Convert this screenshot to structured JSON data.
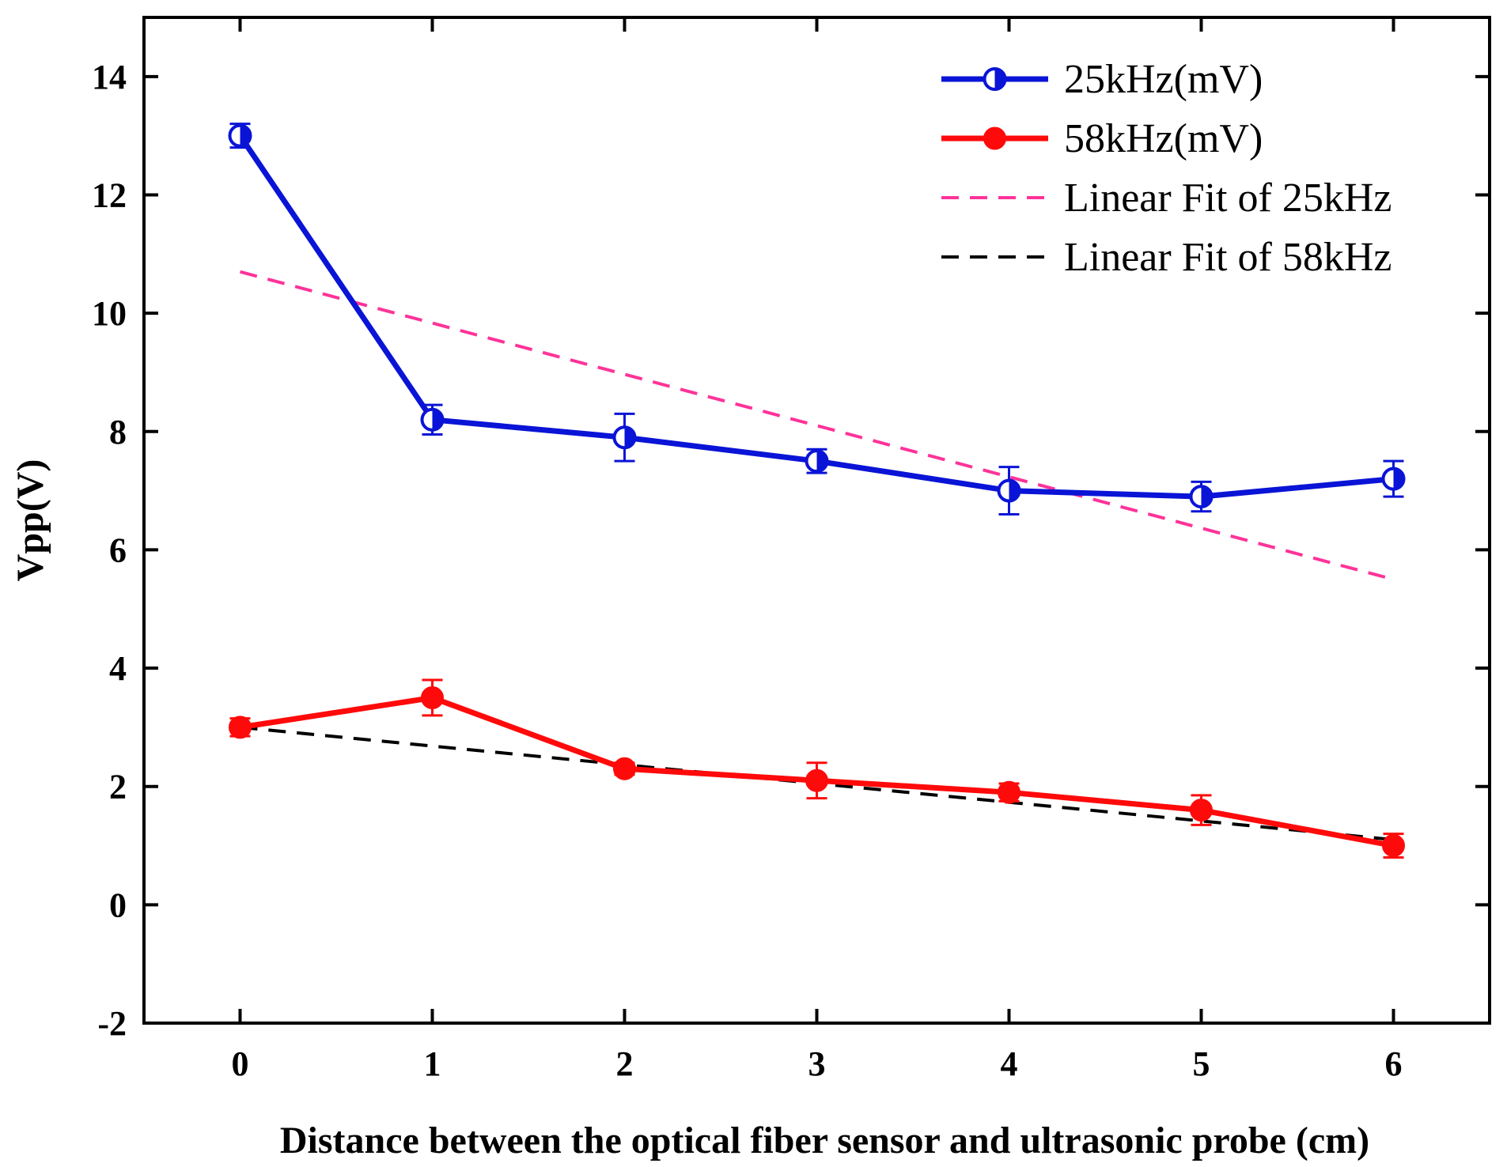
{
  "chart_data": {
    "type": "line",
    "xlabel": "Distance between the optical fiber sensor and ultrasonic probe (cm)",
    "ylabel": "Vpp(V)",
    "xlim": [
      -0.5,
      6.5
    ],
    "ylim": [
      -2,
      15
    ],
    "x_ticks": [
      0,
      1,
      2,
      3,
      4,
      5,
      6
    ],
    "y_ticks": [
      -2,
      0,
      2,
      4,
      6,
      8,
      10,
      12,
      14
    ],
    "x_tick_labels": [
      "0",
      "1",
      "2",
      "3",
      "4",
      "5",
      "6"
    ],
    "y_tick_labels": [
      "-2",
      "0",
      "2",
      "4",
      "6",
      "8",
      "10",
      "12",
      "14"
    ],
    "grid": false,
    "legend_position": "top-right",
    "series": [
      {
        "name": "25kHz(mV)",
        "color": "#0a14d6",
        "marker": "half-filled-circle",
        "x": [
          0,
          1,
          2,
          3,
          4,
          5,
          6
        ],
        "y": [
          13.0,
          8.2,
          7.9,
          7.5,
          7.0,
          6.9,
          7.2
        ],
        "error": [
          0.2,
          0.25,
          0.4,
          0.2,
          0.4,
          0.25,
          0.3
        ]
      },
      {
        "name": "58kHz(mV)",
        "color": "#ff0a0a",
        "marker": "filled-circle",
        "x": [
          0,
          1,
          2,
          3,
          4,
          5,
          6
        ],
        "y": [
          3.0,
          3.5,
          2.3,
          2.1,
          1.9,
          1.6,
          1.0
        ],
        "error": [
          0.15,
          0.3,
          0.1,
          0.3,
          0.15,
          0.25,
          0.2
        ]
      },
      {
        "name": "Linear Fit of 25kHz",
        "color": "#ff3399",
        "style": "dashed",
        "x": [
          0,
          6
        ],
        "y": [
          10.7,
          5.5
        ]
      },
      {
        "name": "Linear Fit of 58kHz",
        "color": "#000000",
        "style": "dashed",
        "x": [
          0,
          6
        ],
        "y": [
          3.0,
          1.1
        ]
      }
    ]
  }
}
